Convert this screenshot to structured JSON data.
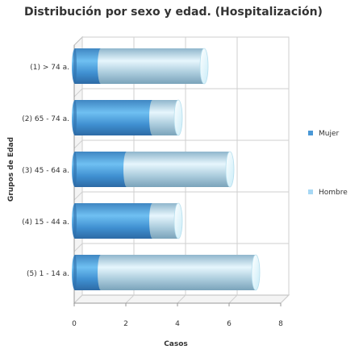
{
  "chart_data": {
    "type": "bar",
    "orientation": "horizontal",
    "stacked": true,
    "style": "3d-cylinder",
    "title": "Distribución por sexo y edad. (Hospitalización)",
    "xlabel": "Casos",
    "ylabel": "Grupos de Edad",
    "xlim": [
      0,
      8
    ],
    "x_ticks": [
      0,
      2,
      4,
      6,
      8
    ],
    "grid": true,
    "legend_position": "right",
    "categories": [
      "(1) > 74 a.",
      "(2) 65 - 74 a.",
      "(3) 45 - 64 a.",
      "(4) 15 - 44 a.",
      "(5) 1 - 14 a."
    ],
    "series": [
      {
        "name": "Mujer",
        "values": [
          1,
          3,
          2,
          3,
          1
        ],
        "color": "#4a98d6"
      },
      {
        "name": "Hombre",
        "values": [
          4,
          1,
          4,
          1,
          6
        ],
        "color": "#a7d8f5"
      }
    ]
  }
}
